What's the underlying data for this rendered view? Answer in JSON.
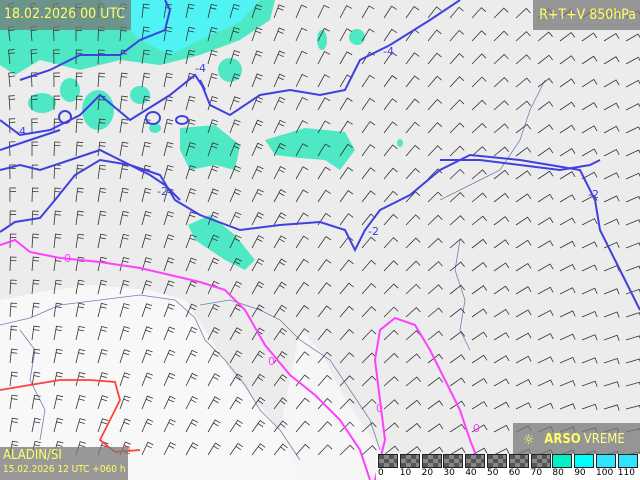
{
  "header": {
    "valid_time": "18.02.2026 00 UTC",
    "parameter": "R+T+V 850hPa"
  },
  "footer": {
    "model": "ALADIN/SI",
    "run": "15.02.2026 12 UTC +060 h",
    "logo_bold": "ARSO",
    "logo_light": "VREME",
    "logo_icon": "sun-icon"
  },
  "contour_labels": {
    "minus4": "-4",
    "minus2": "-2",
    "zero": "0",
    "plus2": "2"
  },
  "legend": {
    "ticks": [
      "0",
      "10",
      "20",
      "30",
      "40",
      "50",
      "60",
      "70",
      "80",
      "90",
      "100",
      "110"
    ],
    "colors": [
      "checker",
      "checker",
      "checker",
      "checker",
      "checker",
      "checker",
      "checker",
      "checker",
      "#00f0c8",
      "#00ffff",
      "#30e4ff",
      "#30e4ff"
    ]
  },
  "colors": {
    "humidity": "#3ee8c0",
    "humidity_high": "#40f4f4",
    "isotherm_negative": "#4040e0",
    "isotherm_zero": "#ff40ff",
    "isotherm_positive": "#ff4040",
    "label_text": "#ffff66"
  }
}
